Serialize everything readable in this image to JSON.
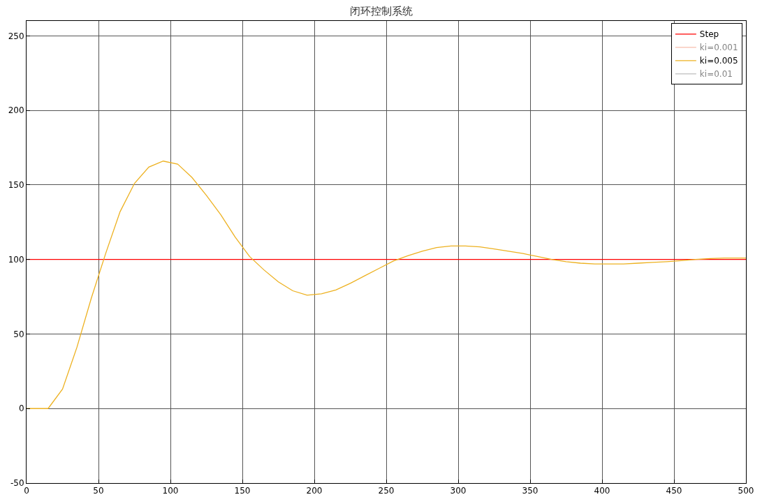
{
  "chart_data": {
    "type": "line",
    "title": "闭环控制系统",
    "xlim": [
      0,
      500
    ],
    "ylim": [
      -50,
      260
    ],
    "xticks": [
      0,
      50,
      100,
      150,
      200,
      250,
      300,
      350,
      400,
      450,
      500
    ],
    "yticks": [
      -50,
      0,
      50,
      100,
      150,
      200,
      250
    ],
    "grid": true,
    "legend": "top right",
    "marker": "none",
    "line_style": "solid",
    "series": [
      {
        "name": "Step",
        "color": "#ff0000",
        "x": [
          0,
          500
        ],
        "values": [
          100,
          100
        ]
      },
      {
        "name": "ki=0.001",
        "color": "#f08060"
      },
      {
        "name": "ki=0.005",
        "color": "#edb120",
        "x": [
          0,
          15,
          25,
          35,
          45,
          55,
          65,
          75,
          85,
          95,
          105,
          115,
          125,
          135,
          145,
          155,
          165,
          175,
          185,
          195,
          205,
          215,
          225,
          235,
          245,
          255,
          265,
          275,
          285,
          295,
          305,
          315,
          325,
          335,
          345,
          355,
          365,
          375,
          385,
          395,
          405,
          415,
          425,
          435,
          445,
          455,
          465,
          475,
          485,
          500
        ],
        "values": [
          0,
          0,
          13,
          41,
          74,
          104,
          132,
          151,
          162,
          166,
          164,
          155,
          143,
          130,
          115,
          102,
          93,
          85,
          79,
          76,
          77,
          79.5,
          84,
          89,
          94,
          99,
          102.5,
          105.5,
          108,
          109,
          109,
          108.5,
          107,
          105.5,
          104,
          102,
          100,
          98.5,
          97.5,
          97,
          97,
          97,
          97.5,
          98,
          98.5,
          99.2,
          100,
          100.6,
          101,
          101
        ]
      },
      {
        "name": "ki=0.01",
        "color": "#808080"
      }
    ]
  }
}
